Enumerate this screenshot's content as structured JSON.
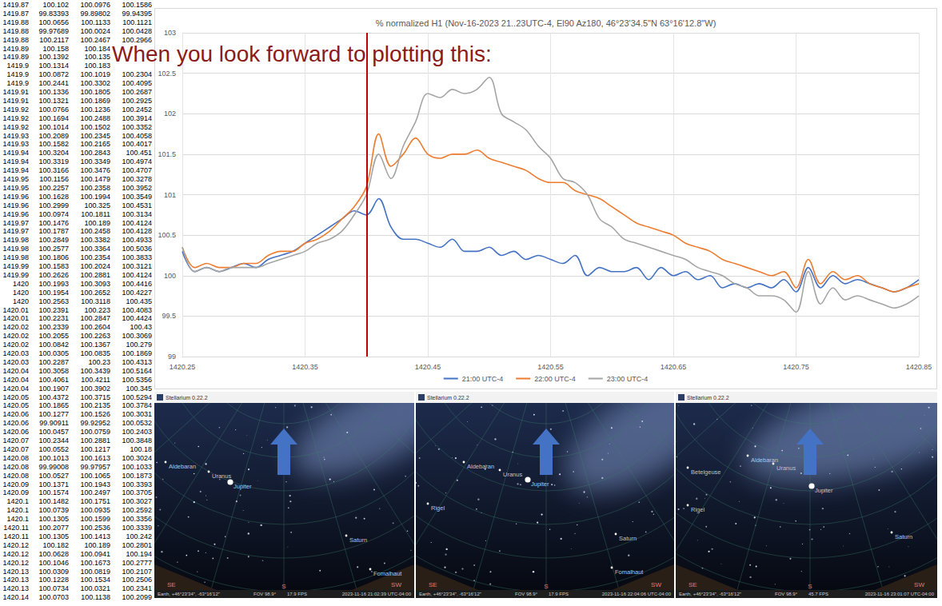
{
  "caption": "When you look forward to plotting this:",
  "spreadsheet": {
    "rows": [
      [
        "1419.87",
        "100.102",
        "100.0976",
        "100.1586"
      ],
      [
        "1419.87",
        "99.83393",
        "99.89802",
        "99.94395"
      ],
      [
        "1419.88",
        "100.0656",
        "100.1133",
        "100.1121"
      ],
      [
        "1419.88",
        "99.97689",
        "100.0024",
        "100.0428"
      ],
      [
        "1419.88",
        "100.2117",
        "100.2467",
        "100.2966"
      ],
      [
        "1419.89",
        "100.158",
        "100.184"
      ],
      [
        "1419.89",
        "100.1392",
        "100.135"
      ],
      [
        "1419.9",
        "100.1314",
        "100.183"
      ],
      [
        "1419.9",
        "100.0872",
        "100.1019",
        "100.2304"
      ],
      [
        "1419.9",
        "100.2441",
        "100.3302",
        "100.4095"
      ],
      [
        "1419.91",
        "100.1336",
        "100.1805",
        "100.2687"
      ],
      [
        "1419.91",
        "100.1321",
        "100.1869",
        "100.2925"
      ],
      [
        "1419.92",
        "100.0766",
        "100.1236",
        "100.2452"
      ],
      [
        "1419.92",
        "100.1694",
        "100.2488",
        "100.3914"
      ],
      [
        "1419.92",
        "100.1014",
        "100.1502",
        "100.3352"
      ],
      [
        "1419.93",
        "100.2089",
        "100.2345",
        "100.4058"
      ],
      [
        "1419.93",
        "100.1582",
        "100.2165",
        "100.4017"
      ],
      [
        "1419.94",
        "100.3204",
        "100.2843",
        "100.451"
      ],
      [
        "1419.94",
        "100.3319",
        "100.3349",
        "100.4974"
      ],
      [
        "1419.94",
        "100.3166",
        "100.3476",
        "100.4707"
      ],
      [
        "1419.95",
        "100.1156",
        "100.1479",
        "100.3278"
      ],
      [
        "1419.95",
        "100.2257",
        "100.2358",
        "100.3952"
      ],
      [
        "1419.96",
        "100.1628",
        "100.1994",
        "100.3549"
      ],
      [
        "1419.96",
        "100.2999",
        "100.325",
        "100.4531"
      ],
      [
        "1419.96",
        "100.0974",
        "100.1811",
        "100.3134"
      ],
      [
        "1419.97",
        "100.1476",
        "100.189",
        "100.4124"
      ],
      [
        "1419.97",
        "100.1787",
        "100.2458",
        "100.4128"
      ],
      [
        "1419.98",
        "100.2849",
        "100.3382",
        "100.4933"
      ],
      [
        "1419.98",
        "100.2577",
        "100.3364",
        "100.5036"
      ],
      [
        "1419.98",
        "100.1806",
        "100.2354",
        "100.3833"
      ],
      [
        "1419.99",
        "100.1583",
        "100.2024",
        "100.3121"
      ],
      [
        "1419.99",
        "100.2626",
        "100.2881",
        "100.4124"
      ],
      [
        "1420",
        "100.1993",
        "100.3093",
        "100.4416"
      ],
      [
        "1420",
        "100.1954",
        "100.2652",
        "100.4227"
      ],
      [
        "1420",
        "100.2563",
        "100.3118",
        "100.435"
      ],
      [
        "1420.01",
        "100.2391",
        "100.223",
        "100.4083"
      ],
      [
        "1420.01",
        "100.2231",
        "100.2847",
        "100.4424"
      ],
      [
        "1420.02",
        "100.2339",
        "100.2604",
        "100.43"
      ],
      [
        "1420.02",
        "100.2055",
        "100.2263",
        "100.3069"
      ],
      [
        "1420.02",
        "100.0842",
        "100.1367",
        "100.279"
      ],
      [
        "1420.03",
        "100.0305",
        "100.0835",
        "100.1869"
      ],
      [
        "1420.03",
        "100.2287",
        "100.23",
        "100.4313"
      ],
      [
        "1420.04",
        "100.3058",
        "100.3439",
        "100.5164"
      ],
      [
        "1420.04",
        "100.4061",
        "100.4211",
        "100.5356"
      ],
      [
        "1420.04",
        "100.1907",
        "100.3902",
        "100.345"
      ],
      [
        "1420.05",
        "100.4372",
        "100.3715",
        "100.5294"
      ],
      [
        "1420.05",
        "100.1865",
        "100.2135",
        "100.3784"
      ],
      [
        "1420.06",
        "100.1277",
        "100.1526",
        "100.3031"
      ],
      [
        "1420.06",
        "99.90911",
        "99.92952",
        "100.0532"
      ],
      [
        "1420.06",
        "100.0457",
        "100.0759",
        "100.2403"
      ],
      [
        "1420.07",
        "100.2344",
        "100.2881",
        "100.3848"
      ],
      [
        "1420.07",
        "100.0552",
        "100.1217",
        "100.18"
      ],
      [
        "1420.08",
        "100.1013",
        "100.1613",
        "100.3024"
      ],
      [
        "1420.08",
        "99.99008",
        "99.97957",
        "100.1033"
      ],
      [
        "1420.08",
        "100.0527",
        "100.1065",
        "100.1873"
      ],
      [
        "1420.09",
        "100.1371",
        "100.1943",
        "100.3393"
      ],
      [
        "1420.09",
        "100.1574",
        "100.2497",
        "100.3705"
      ],
      [
        "1420.1",
        "100.1482",
        "100.1751",
        "100.3027"
      ],
      [
        "1420.1",
        "100.0739",
        "100.0935",
        "100.2592"
      ],
      [
        "1420.1",
        "100.1305",
        "100.1599",
        "100.3356"
      ],
      [
        "1420.11",
        "100.2077",
        "100.2536",
        "100.3339"
      ],
      [
        "1420.11",
        "100.1305",
        "100.1413",
        "100.242"
      ],
      [
        "1420.12",
        "100.182",
        "100.189",
        "100.2801"
      ],
      [
        "1420.12",
        "100.0628",
        "100.0941",
        "100.194"
      ],
      [
        "1420.12",
        "100.1046",
        "100.1673",
        "100.2777"
      ],
      [
        "1420.13",
        "100.0309",
        "100.0819",
        "100.2107"
      ],
      [
        "1420.13",
        "100.1228",
        "100.1534",
        "100.2506"
      ],
      [
        "1420.13",
        "100.0734",
        "100.0321",
        "100.2341"
      ],
      [
        "1420.14",
        "100.0703",
        "100.1138",
        "100.2099"
      ]
    ]
  },
  "chart_data": {
    "type": "line",
    "title": "% normalized H1 (Nov-16-2023 21..23UTC-4, El90 Az180, 46°23'34.5\"N 63°16'12.8\"W)",
    "x": [
      1420.25,
      1420.26,
      1420.27,
      1420.28,
      1420.29,
      1420.3,
      1420.31,
      1420.32,
      1420.33,
      1420.34,
      1420.35,
      1420.36,
      1420.37,
      1420.38,
      1420.39,
      1420.4,
      1420.41,
      1420.42,
      1420.43,
      1420.44,
      1420.45,
      1420.46,
      1420.47,
      1420.48,
      1420.49,
      1420.5,
      1420.51,
      1420.52,
      1420.53,
      1420.54,
      1420.55,
      1420.56,
      1420.57,
      1420.58,
      1420.59,
      1420.6,
      1420.61,
      1420.62,
      1420.63,
      1420.64,
      1420.65,
      1420.66,
      1420.67,
      1420.68,
      1420.69,
      1420.7,
      1420.71,
      1420.72,
      1420.73,
      1420.74,
      1420.75,
      1420.76,
      1420.77,
      1420.78,
      1420.79,
      1420.8,
      1420.81,
      1420.82,
      1420.83,
      1420.84,
      1420.85
    ],
    "series": [
      {
        "name": "21:00 UTC-4",
        "color": "#4472c4",
        "values": [
          100.3,
          100.05,
          100.1,
          100.05,
          100.1,
          100.15,
          100.1,
          100.2,
          100.25,
          100.3,
          100.4,
          100.5,
          100.6,
          100.7,
          100.8,
          100.75,
          100.95,
          100.6,
          100.45,
          100.45,
          100.4,
          100.35,
          100.45,
          100.3,
          100.3,
          100.35,
          100.25,
          100.3,
          100.2,
          100.25,
          100.2,
          100.15,
          100.25,
          100.0,
          100.1,
          100.05,
          100.05,
          100.1,
          99.95,
          100.1,
          100.0,
          100.05,
          99.95,
          100.0,
          99.85,
          99.9,
          99.85,
          99.9,
          99.85,
          99.95,
          99.8,
          100.1,
          99.85,
          100.0,
          99.9,
          99.95,
          99.9,
          99.85,
          99.8,
          99.85,
          99.95
        ]
      },
      {
        "name": "22:00 UTC-4",
        "color": "#ed7d31",
        "values": [
          100.35,
          100.1,
          100.15,
          100.1,
          100.1,
          100.15,
          100.15,
          100.25,
          100.3,
          100.3,
          100.4,
          100.45,
          100.55,
          100.7,
          100.85,
          101.1,
          101.75,
          101.35,
          101.5,
          101.7,
          101.5,
          101.45,
          101.5,
          101.5,
          101.55,
          101.45,
          101.4,
          101.35,
          101.3,
          101.2,
          101.15,
          101.15,
          101.05,
          101.0,
          100.95,
          100.85,
          100.75,
          100.65,
          100.6,
          100.55,
          100.5,
          100.4,
          100.35,
          100.3,
          100.2,
          100.15,
          100.1,
          100.05,
          100.0,
          100.05,
          99.85,
          100.2,
          99.9,
          100.05,
          99.95,
          100.0,
          99.9,
          99.85,
          99.8,
          99.85,
          99.9
        ]
      },
      {
        "name": "23:00 UTC-4",
        "color": "#a5a5a5",
        "values": [
          100.35,
          100.05,
          100.1,
          100.05,
          100.1,
          100.1,
          100.1,
          100.15,
          100.2,
          100.25,
          100.3,
          100.4,
          100.45,
          100.55,
          100.75,
          101.0,
          101.5,
          101.2,
          101.6,
          101.9,
          102.25,
          102.2,
          102.3,
          102.25,
          102.3,
          102.45,
          102.0,
          101.9,
          101.8,
          101.6,
          101.45,
          101.2,
          101.15,
          101.0,
          100.7,
          100.6,
          100.45,
          100.4,
          100.35,
          100.3,
          100.25,
          100.2,
          100.1,
          100.05,
          100.0,
          99.9,
          99.85,
          99.75,
          99.75,
          99.7,
          99.55,
          100.05,
          99.65,
          99.85,
          99.7,
          99.75,
          99.7,
          99.65,
          99.6,
          99.65,
          99.75
        ]
      }
    ],
    "reference_line": {
      "x": 1420.405,
      "color": "#c00000"
    },
    "xlim": [
      1420.25,
      1420.85
    ],
    "xticks": [
      1420.25,
      1420.35,
      1420.45,
      1420.55,
      1420.65,
      1420.75,
      1420.85
    ],
    "ylim": [
      99,
      103
    ],
    "yticks": [
      99,
      99.5,
      100,
      100.5,
      101,
      101.5,
      102,
      102.5,
      103
    ],
    "grid": true,
    "legend": "bottom"
  },
  "screenshots": [
    {
      "window_title": "Stellarium 0.22.2",
      "labels": [
        "Aldebaran",
        "Uranus",
        "Jupiter",
        "Saturn",
        "Fomalhaut"
      ],
      "compass": [
        "SE",
        "S",
        "SW"
      ],
      "status": {
        "location": "Earth, +46°23'34\", -63°16'12\"",
        "fov": "FOV 98.9°",
        "fps": "17.9 FPS",
        "time": "2023-11-16 21:02:39 UTC-04:00"
      }
    },
    {
      "window_title": "Stellarium 0.22.2",
      "labels": [
        "Rigel",
        "Aldebaran",
        "Uranus",
        "Jupiter",
        "Saturn",
        "Fomalhaut"
      ],
      "compass": [
        "SE",
        "S",
        "SW"
      ],
      "status": {
        "location": "Earth, +46°23'34\", -63°16'12\"",
        "fov": "FOV 98.9°",
        "fps": "17.9 FPS",
        "time": "2023-11-16 22:04:06 UTC-04:00"
      }
    },
    {
      "window_title": "Stellarium 0.22.2",
      "labels": [
        "Betelgeuse",
        "Rigel",
        "Aldebaran",
        "Uranus",
        "Jupiter",
        "Saturn"
      ],
      "compass": [
        "SE",
        "S",
        "SW"
      ],
      "status": {
        "location": "Earth, +46°23'34\", -63°16'12\"",
        "fov": "FOV 98.9°",
        "fps": "45.7 FPS",
        "time": "2023-11-16 23:01:07 UTC-04:00"
      }
    }
  ]
}
